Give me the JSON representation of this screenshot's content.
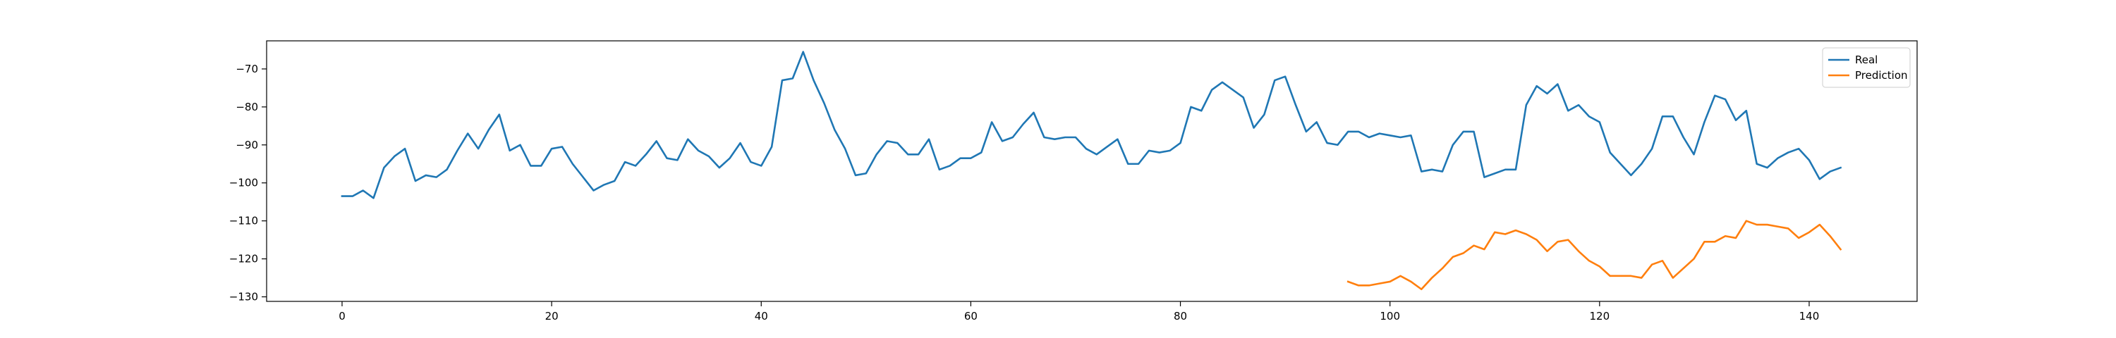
{
  "chart_data": {
    "type": "line",
    "title": "",
    "xlabel": "",
    "ylabel": "",
    "xlim": [
      -7.2,
      150.3
    ],
    "ylim": [
      -131.2,
      -62.6
    ],
    "x_ticks": [
      0,
      20,
      40,
      60,
      80,
      100,
      120,
      140
    ],
    "y_ticks": [
      -130,
      -120,
      -110,
      -100,
      -90,
      -80,
      -70
    ],
    "x_tick_labels": [
      "0",
      "20",
      "40",
      "60",
      "80",
      "100",
      "120",
      "140"
    ],
    "y_tick_labels": [
      "−130",
      "−120",
      "−110",
      "−100",
      "−90",
      "−80",
      "−70"
    ],
    "grid": false,
    "legend_position": "top-right",
    "series": [
      {
        "name": "Real",
        "color": "#1f77b4",
        "x_start": 0,
        "values": [
          -103.5,
          -103.5,
          -102.0,
          -104.0,
          -96.0,
          -93.0,
          -91.0,
          -99.5,
          -98.0,
          -98.5,
          -96.5,
          -91.5,
          -87.0,
          -91.0,
          -86.0,
          -82.0,
          -91.5,
          -90.0,
          -95.5,
          -95.5,
          -91.0,
          -90.5,
          -95.0,
          -98.5,
          -102.0,
          -100.5,
          -99.5,
          -94.5,
          -95.5,
          -92.5,
          -89.0,
          -93.5,
          -94.0,
          -88.5,
          -91.5,
          -93.0,
          -96.0,
          -93.5,
          -89.5,
          -94.5,
          -95.5,
          -90.5,
          -73.0,
          -72.5,
          -65.5,
          -73.0,
          -79.0,
          -86.0,
          -91.0,
          -98.0,
          -97.5,
          -92.5,
          -89.0,
          -89.5,
          -92.5,
          -92.5,
          -88.5,
          -96.5,
          -95.5,
          -93.5,
          -93.5,
          -92.0,
          -84.0,
          -89.0,
          -88.0,
          -84.5,
          -81.5,
          -88.0,
          -88.5,
          -88.0,
          -88.0,
          -91.0,
          -92.5,
          -90.5,
          -88.5,
          -95.0,
          -95.0,
          -91.5,
          -92.0,
          -91.5,
          -89.5,
          -80.0,
          -81.0,
          -75.5,
          -73.5,
          -75.5,
          -77.5,
          -85.5,
          -82.0,
          -73.0,
          -72.0,
          -79.5,
          -86.5,
          -84.0,
          -89.5,
          -90.0,
          -86.5,
          -86.5,
          -88.0,
          -87.0,
          -87.5,
          -88.0,
          -87.5,
          -97.0,
          -96.5,
          -97.0,
          -90.0,
          -86.5,
          -86.5,
          -98.5,
          -97.5,
          -96.5,
          -96.5,
          -79.5,
          -74.5,
          -76.5,
          -74.0,
          -81.0,
          -79.5,
          -82.5,
          -84.0,
          -92.0,
          -95.0,
          -98.0,
          -95.0,
          -91.0,
          -82.5,
          -82.5,
          -88.0,
          -92.5,
          -84.0,
          -77.0,
          -78.0,
          -83.5,
          -81.0,
          -95.0,
          -96.0,
          -93.5,
          -92.0,
          -91.0,
          -94.0,
          -99.0,
          -97.0,
          -96.0
        ]
      },
      {
        "name": "Prediction",
        "color": "#ff7f0e",
        "x_start": 96,
        "values": [
          -126.0,
          -127.0,
          -127.0,
          -126.5,
          -126.0,
          -124.5,
          -126.0,
          -128.0,
          -125.0,
          -122.5,
          -119.5,
          -118.5,
          -116.5,
          -117.5,
          -113.0,
          -113.5,
          -112.5,
          -113.5,
          -115.0,
          -118.0,
          -115.5,
          -115.0,
          -118.0,
          -120.5,
          -122.0,
          -124.5,
          -124.5,
          -124.5,
          -125.0,
          -121.5,
          -120.5,
          -125.0,
          -122.5,
          -120.0,
          -115.5,
          -115.5,
          -114.0,
          -114.5,
          -110.0,
          -111.0,
          -111.0,
          -111.5,
          -112.0,
          -114.5,
          -113.0,
          -111.0,
          -114.0,
          -117.5
        ]
      }
    ]
  }
}
